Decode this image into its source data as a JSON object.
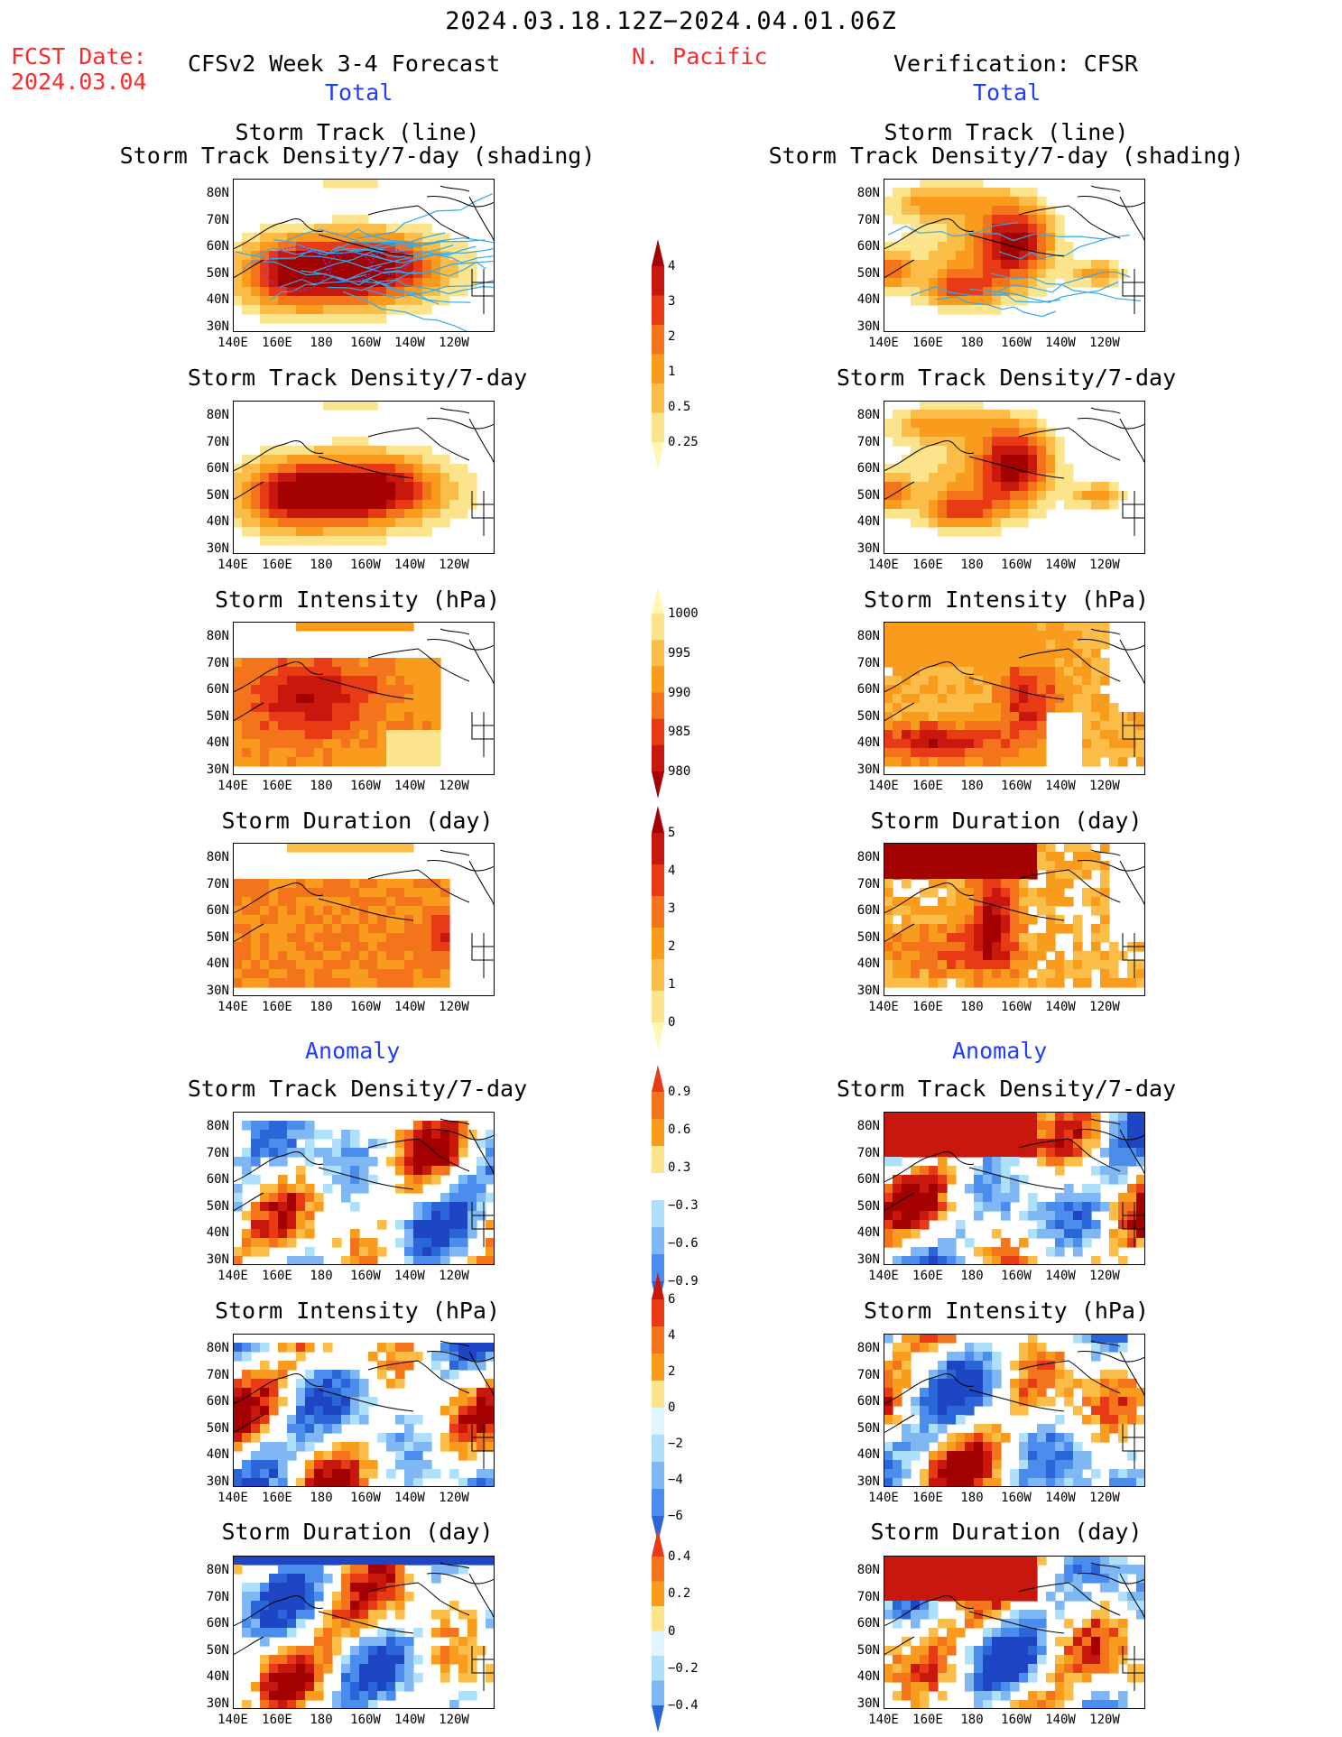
{
  "header": {
    "period": "2024.03.18.12Z−2024.04.01.06Z",
    "fcst_label": "FCST Date:",
    "fcst_date": "2024.03.04",
    "model_title": "CFSv2 Week 3-4 Forecast",
    "region": "N. Pacific",
    "verification": "Verification: CFSR",
    "total_label": "Total",
    "anomaly_label": "Anomaly"
  },
  "panel_titles": {
    "track_line": "Storm Track (line)",
    "track_shading": "Storm Track Density/7-day (shading)",
    "density": "Storm Track Density/7-day",
    "intensity": "Storm Intensity (hPa)",
    "duration": "Storm Duration (day)"
  },
  "axes": {
    "lat_labels": [
      "80N",
      "70N",
      "60N",
      "50N",
      "40N",
      "30N"
    ],
    "lon_labels": [
      "140E",
      "160E",
      "180",
      "160W",
      "140W",
      "120W"
    ]
  },
  "colors": {
    "pos": [
      "#fff7b3",
      "#fbe48c",
      "#fbbd48",
      "#f99b1d",
      "#f4741c",
      "#e83a14",
      "#c8180e",
      "#a30000"
    ],
    "neg": [
      "#dff4ff",
      "#aee0fb",
      "#7fb6f4",
      "#4b8ded",
      "#2a66d8",
      "#1e46c4"
    ],
    "track_line": "#35a8e8",
    "track_dot": "#7d3bd1"
  },
  "colorbars": [
    {
      "labels": [
        "4",
        "3",
        "2",
        "1",
        "0.5",
        "0.25"
      ]
    },
    {
      "labels": [
        "1000",
        "995",
        "990",
        "985",
        "980"
      ]
    },
    {
      "labels": [
        "5",
        "4",
        "3",
        "2",
        "1",
        "0"
      ]
    },
    {
      "labels": [
        "0.9",
        "0.6",
        "0.3",
        "−0.3",
        "−0.6",
        "−0.9"
      ]
    },
    {
      "labels": [
        "6",
        "4",
        "2",
        "0",
        "−2",
        "−4",
        "−6"
      ]
    },
    {
      "labels": [
        "0.4",
        "0.2",
        "0",
        "−0.2",
        "−0.4"
      ]
    }
  ]
}
